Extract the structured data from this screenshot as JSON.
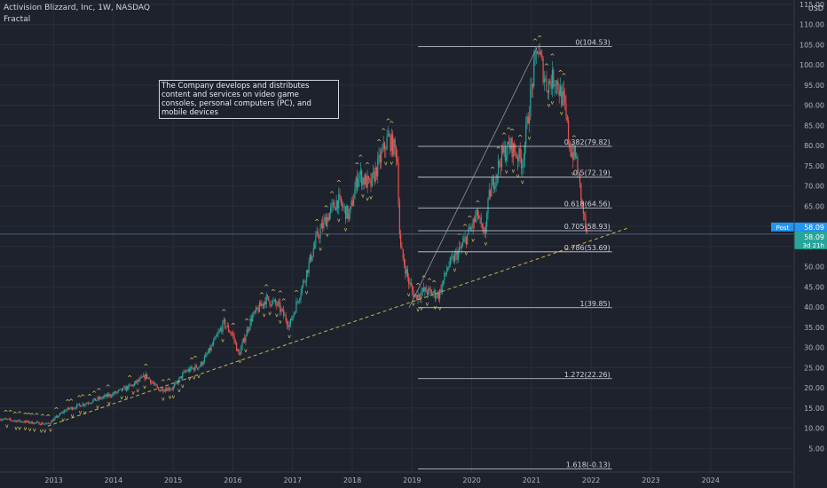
{
  "header": {
    "symbol_line": "Activision Blizzard, Inc, 1W, NASDAQ",
    "indicator": "Fractal",
    "currency": "USD"
  },
  "annotation": {
    "text": "The Company develops and distributes content and services on video game consoles, personal computers (PC), and mobile devices"
  },
  "price_tags": {
    "post_label": "Post",
    "post_value": "58.09",
    "last_value": "58.09",
    "countdown": "3d 21h"
  },
  "colors": {
    "background": "#1e222d",
    "up": "#26a69a",
    "down": "#ef5350",
    "fib_line": "#d1d4dc",
    "trendline": "#c8b04a",
    "fractal": "#e6dc5a",
    "price_line": "#4a6a8a",
    "post_tag": "#2196f3",
    "last_tag": "#26a69a"
  },
  "chart_data": {
    "type": "candlestick",
    "title": "Activision Blizzard, Inc, 1W, NASDAQ",
    "ylabel": "USD",
    "ylim": [
      0,
      115
    ],
    "y_ticks": [
      5.0,
      10.0,
      15.0,
      20.0,
      25.0,
      30.0,
      35.0,
      40.0,
      45.0,
      50.0,
      55.0,
      60.0,
      65.0,
      70.0,
      75.0,
      80.0,
      85.0,
      90.0,
      95.0,
      100.0,
      105.0,
      110.0,
      115.0
    ],
    "x_ticks": [
      "2013",
      "2014",
      "2015",
      "2016",
      "2017",
      "2018",
      "2019",
      "2020",
      "2021",
      "2022",
      "2023",
      "2024"
    ],
    "xlim": [
      2012.1,
      2025.4
    ],
    "grid": true,
    "last_price": 58.09,
    "fibonacci_retracement": {
      "start": {
        "x": 2021.1,
        "price": 104.53
      },
      "end": {
        "x": 2018.95,
        "price": 39.85
      },
      "x_range": [
        2019.1,
        2022.35
      ],
      "levels": [
        {
          "ratio": 0,
          "label": "0(104.53)",
          "price": 104.53
        },
        {
          "ratio": 0.382,
          "label": "0.382(79.82)",
          "price": 79.82
        },
        {
          "ratio": 0.5,
          "label": "0.5(72.19)",
          "price": 72.19
        },
        {
          "ratio": 0.618,
          "label": "0.618(64.56)",
          "price": 64.56
        },
        {
          "ratio": 0.705,
          "label": "0.705(58.93)",
          "price": 58.93
        },
        {
          "ratio": 0.786,
          "label": "0.786(53.69)",
          "price": 53.69
        },
        {
          "ratio": 1,
          "label": "1(39.85)",
          "price": 39.85
        },
        {
          "ratio": 1.272,
          "label": "1.272(22.26)",
          "price": 22.26
        },
        {
          "ratio": 1.618,
          "label": "1.618(-0.13)",
          "price": -0.13
        }
      ]
    },
    "trendline": {
      "from": {
        "x": 2012.9,
        "price": 10.5
      },
      "to": {
        "x": 2022.6,
        "price": 59.5
      }
    },
    "price_path": [
      [
        2012.1,
        12.3
      ],
      [
        2012.5,
        11.6
      ],
      [
        2012.9,
        11.0
      ],
      [
        2013.2,
        14.5
      ],
      [
        2013.5,
        16.0
      ],
      [
        2013.8,
        17.5
      ],
      [
        2014.0,
        18.5
      ],
      [
        2014.3,
        20.5
      ],
      [
        2014.55,
        23.0
      ],
      [
        2014.75,
        19.5
      ],
      [
        2015.0,
        20.0
      ],
      [
        2015.2,
        24.0
      ],
      [
        2015.45,
        25.5
      ],
      [
        2015.6,
        29.0
      ],
      [
        2015.85,
        36.0
      ],
      [
        2016.0,
        33.0
      ],
      [
        2016.1,
        28.0
      ],
      [
        2016.3,
        37.0
      ],
      [
        2016.55,
        42.0
      ],
      [
        2016.75,
        40.5
      ],
      [
        2016.95,
        35.5
      ],
      [
        2017.2,
        47.0
      ],
      [
        2017.4,
        57.0
      ],
      [
        2017.55,
        61.5
      ],
      [
        2017.75,
        66.5
      ],
      [
        2017.95,
        62.5
      ],
      [
        2018.1,
        73.0
      ],
      [
        2018.3,
        70.0
      ],
      [
        2018.45,
        76.0
      ],
      [
        2018.6,
        82.0
      ],
      [
        2018.75,
        78.0
      ],
      [
        2018.8,
        55.0
      ],
      [
        2018.95,
        46.0
      ],
      [
        2019.05,
        42.5
      ],
      [
        2019.2,
        44.0
      ],
      [
        2019.45,
        43.0
      ],
      [
        2019.6,
        50.0
      ],
      [
        2019.8,
        54.0
      ],
      [
        2019.95,
        58.5
      ],
      [
        2020.1,
        63.0
      ],
      [
        2020.2,
        57.0
      ],
      [
        2020.3,
        68.0
      ],
      [
        2020.5,
        77.5
      ],
      [
        2020.65,
        80.0
      ],
      [
        2020.85,
        76.0
      ],
      [
        2021.0,
        94.0
      ],
      [
        2021.1,
        104.53
      ],
      [
        2021.25,
        95.0
      ],
      [
        2021.4,
        97.0
      ],
      [
        2021.55,
        90.0
      ],
      [
        2021.65,
        79.0
      ],
      [
        2021.75,
        77.0
      ],
      [
        2021.85,
        65.0
      ],
      [
        2021.93,
        58.09
      ]
    ]
  }
}
